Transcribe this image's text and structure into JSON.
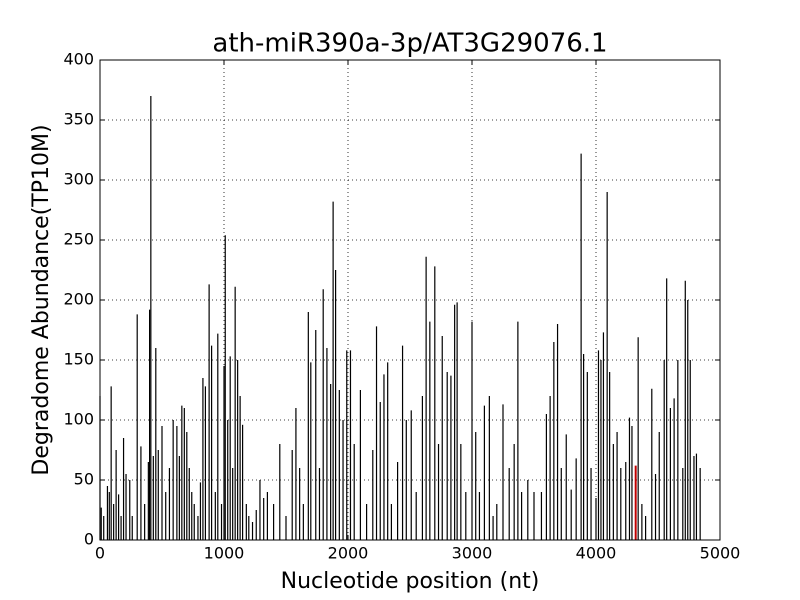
{
  "chart_data": {
    "type": "stem",
    "title": "ath-miR390a-3p/AT3G29076.1",
    "x_label": "Nucleotide position (nt)",
    "y_label": "Degradome Abundance(TP10M)",
    "xlim": [
      0,
      5000
    ],
    "ylim": [
      0,
      400
    ],
    "xticks": [
      0,
      1000,
      2000,
      3000,
      4000,
      5000
    ],
    "yticks": [
      0,
      50,
      100,
      150,
      200,
      250,
      300,
      350,
      400
    ],
    "grid": true,
    "series": [
      {
        "color": "#000000",
        "x": [
          0,
          10,
          30,
          60,
          75,
          90,
          110,
          130,
          150,
          170,
          190,
          210,
          240,
          260,
          300,
          330,
          360,
          390,
          400,
          410,
          430,
          450,
          470,
          500,
          530,
          560,
          590,
          620,
          640,
          660,
          680,
          700,
          720,
          740,
          760,
          790,
          810,
          830,
          850,
          880,
          900,
          930,
          950,
          980,
          1000,
          1010,
          1030,
          1050,
          1070,
          1090,
          1110,
          1130,
          1150,
          1180,
          1200,
          1230,
          1260,
          1290,
          1320,
          1350,
          1400,
          1450,
          1500,
          1550,
          1580,
          1610,
          1640,
          1680,
          1700,
          1740,
          1770,
          1800,
          1830,
          1860,
          1880,
          1900,
          1930,
          1960,
          1990,
          2020,
          2050,
          2100,
          2150,
          2200,
          2230,
          2260,
          2290,
          2320,
          2350,
          2400,
          2440,
          2470,
          2510,
          2550,
          2600,
          2630,
          2660,
          2700,
          2730,
          2760,
          2800,
          2830,
          2860,
          2880,
          2910,
          2950,
          3000,
          3030,
          3060,
          3100,
          3140,
          3170,
          3200,
          3250,
          3300,
          3340,
          3370,
          3400,
          3450,
          3500,
          3560,
          3600,
          3630,
          3660,
          3690,
          3720,
          3760,
          3800,
          3840,
          3880,
          3900,
          3930,
          3960,
          4000,
          4020,
          4040,
          4060,
          4090,
          4110,
          4140,
          4170,
          4200,
          4240,
          4270,
          4290,
          4340,
          4370,
          4400,
          4450,
          4480,
          4510,
          4550,
          4570,
          4600,
          4630,
          4660,
          4700,
          4720,
          4740,
          4760,
          4790,
          4810,
          4840
        ],
        "values": [
          120,
          27,
          20,
          45,
          40,
          128,
          30,
          75,
          38,
          20,
          85,
          55,
          50,
          20,
          188,
          78,
          30,
          65,
          192,
          370,
          70,
          160,
          75,
          95,
          40,
          60,
          100,
          95,
          70,
          112,
          110,
          90,
          60,
          40,
          30,
          20,
          48,
          135,
          128,
          213,
          162,
          40,
          172,
          30,
          145,
          254,
          100,
          153,
          60,
          211,
          150,
          120,
          96,
          30,
          20,
          15,
          25,
          50,
          35,
          40,
          30,
          80,
          20,
          75,
          110,
          60,
          30,
          190,
          148,
          175,
          60,
          209,
          160,
          130,
          282,
          225,
          125,
          100,
          158,
          158,
          80,
          125,
          30,
          75,
          178,
          115,
          138,
          148,
          30,
          65,
          162,
          100,
          108,
          40,
          120,
          236,
          182,
          228,
          80,
          170,
          140,
          137,
          196,
          198,
          80,
          40,
          182,
          90,
          40,
          112,
          120,
          20,
          30,
          113,
          60,
          80,
          182,
          40,
          50,
          40,
          40,
          105,
          120,
          165,
          180,
          60,
          88,
          42,
          68,
          322,
          155,
          140,
          60,
          35,
          158,
          150,
          173,
          290,
          140,
          80,
          90,
          60,
          65,
          102,
          95,
          169,
          30,
          20,
          126,
          55,
          90,
          150,
          218,
          110,
          118,
          150,
          60,
          216,
          200,
          150,
          70,
          72,
          60
        ]
      },
      {
        "color": "#c00000",
        "x": [
          4320
        ],
        "values": [
          62
        ]
      }
    ]
  }
}
